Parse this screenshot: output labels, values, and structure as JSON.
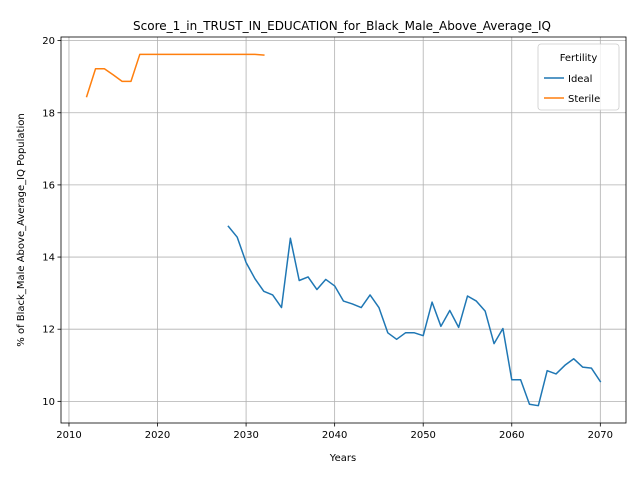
{
  "chart_data": {
    "type": "line",
    "title": "Score_1_in_TRUST_IN_EDUCATION_for_Black_Male_Above_Average_IQ",
    "xlabel": "Years",
    "ylabel": "% of Black_Male Above_Average_IQ Population",
    "xlim": [
      2009.1,
      2072.9
    ],
    "ylim": [
      9.4,
      20.1
    ],
    "xticks": [
      2010,
      2020,
      2030,
      2040,
      2050,
      2060,
      2070
    ],
    "yticks": [
      10,
      12,
      14,
      16,
      18,
      20
    ],
    "grid": true,
    "legend": {
      "title": "Fertility",
      "placement": "top-right"
    },
    "series": [
      {
        "name": "Ideal",
        "color": "#1f77b4",
        "x": [
          2028,
          2029,
          2030,
          2031,
          2032,
          2033,
          2034,
          2035,
          2036,
          2037,
          2038,
          2039,
          2040,
          2041,
          2042,
          2043,
          2044,
          2045,
          2046,
          2047,
          2048,
          2049,
          2050,
          2051,
          2052,
          2053,
          2054,
          2055,
          2056,
          2057,
          2058,
          2059,
          2060,
          2061,
          2062,
          2063,
          2064,
          2065,
          2066,
          2067,
          2068,
          2069,
          2070
        ],
        "y": [
          14.85,
          14.55,
          13.85,
          13.4,
          13.05,
          12.95,
          12.6,
          14.52,
          13.35,
          13.45,
          13.1,
          13.38,
          13.2,
          12.78,
          12.7,
          12.6,
          12.95,
          12.6,
          11.9,
          11.72,
          11.9,
          11.9,
          11.82,
          12.75,
          12.08,
          12.52,
          12.05,
          12.92,
          12.78,
          12.5,
          11.6,
          12.02,
          10.6,
          10.6,
          9.92,
          9.88,
          10.85,
          10.76,
          11.0,
          11.18,
          10.95,
          10.92,
          10.55
        ]
      },
      {
        "name": "Sterile",
        "color": "#ff7f0e",
        "x": [
          2012,
          2013,
          2014,
          2015,
          2016,
          2017,
          2018,
          2019,
          2020,
          2021,
          2022,
          2023,
          2024,
          2025,
          2026,
          2027,
          2028,
          2029,
          2030,
          2031,
          2032
        ],
        "y": [
          18.45,
          19.22,
          19.22,
          19.05,
          18.87,
          18.87,
          19.62,
          19.62,
          19.62,
          19.62,
          19.62,
          19.62,
          19.62,
          19.62,
          19.62,
          19.62,
          19.62,
          19.62,
          19.62,
          19.62,
          19.6
        ]
      }
    ]
  }
}
